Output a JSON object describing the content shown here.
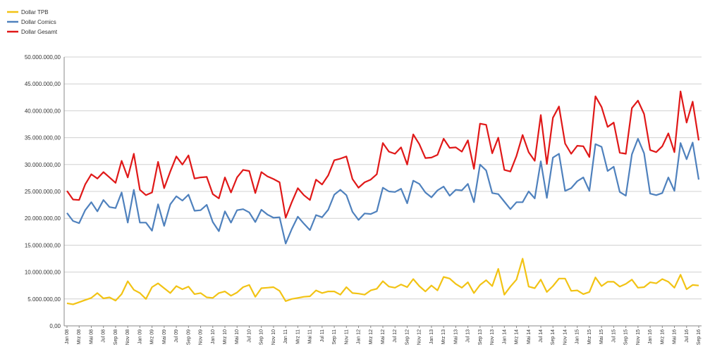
{
  "chart_data": {
    "type": "line",
    "title": "",
    "xlabel": "",
    "ylabel": "",
    "ylim": [
      0,
      50000000
    ],
    "y_ticks": [
      "0,00",
      "5.000.000,00",
      "10.000.000,00",
      "15.000.000,00",
      "20.000.000,00",
      "25.000.000,00",
      "30.000.000,00",
      "35.000.000,00",
      "40.000.000,00",
      "45.000.000,00",
      "50.000.000,00"
    ],
    "grid": true,
    "legend_position": "top-left",
    "x_tick_labels": [
      "Jan 08",
      "Mrz 08",
      "Mai 08",
      "Jul 08",
      "Sep 08",
      "Nov 08",
      "Jan 09",
      "Mrz 09",
      "Mai 09",
      "Jul 09",
      "Sep 09",
      "Nov 09",
      "Jan 10",
      "Mrz 10",
      "Mai 10",
      "Jul 10",
      "Sep 10",
      "Nov 10",
      "Jan 11",
      "Mrz 11",
      "Mai 11",
      "Jul 11",
      "Sep 11",
      "Nov 11",
      "Jan 12",
      "Mrz 12",
      "Mai 12",
      "Jul 12",
      "Sep 12",
      "Nov 12",
      "Jan 13",
      "Mrz 13",
      "Mai 13",
      "Jul 13",
      "Sep 13",
      "Nov 13",
      "Jan 14",
      "Mrz 14",
      "Mai 14",
      "Jul 14",
      "Sep 14",
      "Nov 14",
      "Jan 15",
      "Mrz 15",
      "Mai 15",
      "Jul 15",
      "Sep 15",
      "Nov 15",
      "Jan 16",
      "Mrz 16",
      "Mai 16",
      "Jul 16",
      "Sep 16"
    ],
    "series": [
      {
        "name": "Dollar TPB",
        "color": "#f2c314",
        "values": [
          4200000,
          4000000,
          4400000,
          4800000,
          5200000,
          6100000,
          5100000,
          5300000,
          4700000,
          5900000,
          8300000,
          6700000,
          6100000,
          5000000,
          7200000,
          7900000,
          7000000,
          6100000,
          7400000,
          6800000,
          7300000,
          5900000,
          6100000,
          5300000,
          5200000,
          6100000,
          6400000,
          5600000,
          6200000,
          7200000,
          7600000,
          5400000,
          7000000,
          7100000,
          7200000,
          6500000,
          4600000,
          5000000,
          5200000,
          5400000,
          5500000,
          6600000,
          6100000,
          6400000,
          6400000,
          5800000,
          7200000,
          6100000,
          6000000,
          5800000,
          6600000,
          6900000,
          8300000,
          7300000,
          7100000,
          7700000,
          7200000,
          8700000,
          7400000,
          6400000,
          7500000,
          6600000,
          9100000,
          8800000,
          7800000,
          7100000,
          8100000,
          6100000,
          7600000,
          8500000,
          7400000,
          10600000,
          5800000,
          7300000,
          8600000,
          12500000,
          7300000,
          7000000,
          8600000,
          6300000,
          7400000,
          8800000,
          8800000,
          6500000,
          6600000,
          5900000,
          6300000,
          9000000,
          7400000,
          8200000,
          8200000,
          7300000,
          7800000,
          8600000,
          7100000,
          7200000,
          8100000,
          7900000,
          8700000,
          8200000,
          7100000,
          9500000,
          6800000,
          7600000,
          7500000
        ]
      },
      {
        "name": "Dollar Comics",
        "color": "#4f81bd",
        "values": [
          21000000,
          19500000,
          19100000,
          21500000,
          23000000,
          21300000,
          23400000,
          22100000,
          21900000,
          24800000,
          19200000,
          25300000,
          19200000,
          19200000,
          17700000,
          22600000,
          18600000,
          22600000,
          24100000,
          23300000,
          24400000,
          21400000,
          21500000,
          22500000,
          19300000,
          17600000,
          21300000,
          19200000,
          21500000,
          21700000,
          21100000,
          19300000,
          21600000,
          20700000,
          20100000,
          20200000,
          15300000,
          18000000,
          20300000,
          19000000,
          17800000,
          20600000,
          20200000,
          21600000,
          24400000,
          25300000,
          24300000,
          21200000,
          19700000,
          20900000,
          20800000,
          21300000,
          25700000,
          25000000,
          24900000,
          25500000,
          22800000,
          27000000,
          26400000,
          24800000,
          23900000,
          25200000,
          25900000,
          24200000,
          25300000,
          25200000,
          26400000,
          23000000,
          30000000,
          28900000,
          24700000,
          24500000,
          23100000,
          21700000,
          23000000,
          23000000,
          25000000,
          23700000,
          30600000,
          23800000,
          31300000,
          32000000,
          25100000,
          25600000,
          26900000,
          27600000,
          25100000,
          33800000,
          33300000,
          28800000,
          29600000,
          24900000,
          24200000,
          31900000,
          34800000,
          32100000,
          24600000,
          24300000,
          24700000,
          27600000,
          25100000,
          34000000,
          31000000,
          34100000,
          27200000
        ]
      },
      {
        "name": "Dollar Gesamt",
        "color": "#e01818",
        "values": [
          25100000,
          23500000,
          23400000,
          26300000,
          28200000,
          27400000,
          28600000,
          27600000,
          26600000,
          30700000,
          27600000,
          32000000,
          25300000,
          24300000,
          24800000,
          30500000,
          25600000,
          28700000,
          31500000,
          30000000,
          31700000,
          27400000,
          27600000,
          27700000,
          24500000,
          23700000,
          27600000,
          24800000,
          27600000,
          29000000,
          28800000,
          24700000,
          28600000,
          27800000,
          27300000,
          26700000,
          20100000,
          23000000,
          25600000,
          24300000,
          23400000,
          27200000,
          26300000,
          28000000,
          30800000,
          31100000,
          31500000,
          27300000,
          25700000,
          26700000,
          27200000,
          28200000,
          34000000,
          32400000,
          32000000,
          33200000,
          30000000,
          35600000,
          33800000,
          31200000,
          31300000,
          31800000,
          34800000,
          33100000,
          33200000,
          32400000,
          34500000,
          29200000,
          37600000,
          37400000,
          32100000,
          35000000,
          29000000,
          28700000,
          31600000,
          35500000,
          32300000,
          30700000,
          39200000,
          30100000,
          38700000,
          40800000,
          33900000,
          32000000,
          33500000,
          33400000,
          31400000,
          42700000,
          40700000,
          37000000,
          37800000,
          32200000,
          32000000,
          40500000,
          41900000,
          39400000,
          32700000,
          32300000,
          33400000,
          35800000,
          32300000,
          43600000,
          37800000,
          41700000,
          34500000
        ]
      }
    ]
  }
}
